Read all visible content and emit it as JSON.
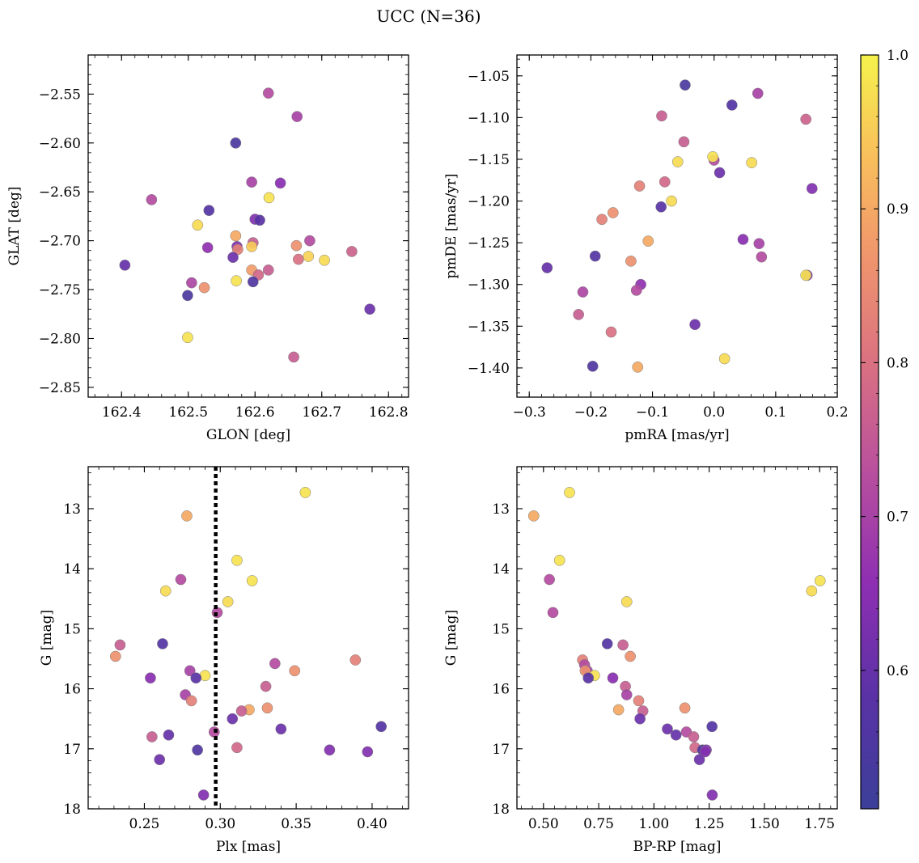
{
  "suptitle": "UCC (N=36)",
  "colorbar": {
    "min": 0.51,
    "max": 1.0,
    "ticks": [
      0.6,
      0.7,
      0.8,
      0.9,
      1.0
    ],
    "tick_labels": [
      "0.6",
      "0.7",
      "0.8",
      "0.9",
      "1.0"
    ],
    "colormap": "plasma"
  },
  "chart_data": [
    {
      "type": "scatter",
      "xlabel": "GLON [deg]",
      "ylabel": "GLAT [deg]",
      "xlim": [
        162.35,
        162.83
      ],
      "ylim": [
        -2.86,
        -2.51
      ],
      "y_inverted": false,
      "xticks": [
        162.4,
        162.5,
        162.6,
        162.7,
        162.8
      ],
      "xtick_labels": [
        "162.4",
        "162.5",
        "162.6",
        "162.7",
        "162.8"
      ],
      "yticks": [
        -2.55,
        -2.6,
        -2.65,
        -2.7,
        -2.75,
        -2.8,
        -2.85
      ],
      "ytick_labels": [
        "−2.55",
        "−2.60",
        "−2.65",
        "−2.70",
        "−2.75",
        "−2.80",
        "−2.85"
      ],
      "points": [
        {
          "x": 162.62,
          "y": -2.549,
          "c": 0.72
        },
        {
          "x": 162.663,
          "y": -2.573,
          "c": 0.7
        },
        {
          "x": 162.571,
          "y": -2.6,
          "c": 0.55
        },
        {
          "x": 162.595,
          "y": -2.64,
          "c": 0.7
        },
        {
          "x": 162.638,
          "y": -2.641,
          "c": 0.65
        },
        {
          "x": 162.445,
          "y": -2.658,
          "c": 0.72
        },
        {
          "x": 162.621,
          "y": -2.656,
          "c": 0.98
        },
        {
          "x": 162.531,
          "y": -2.669,
          "c": 0.57
        },
        {
          "x": 162.6,
          "y": -2.678,
          "c": 0.64
        },
        {
          "x": 162.607,
          "y": -2.679,
          "c": 0.58
        },
        {
          "x": 162.514,
          "y": -2.684,
          "c": 0.97
        },
        {
          "x": 162.571,
          "y": -2.695,
          "c": 0.9
        },
        {
          "x": 162.682,
          "y": -2.7,
          "c": 0.72
        },
        {
          "x": 162.597,
          "y": -2.702,
          "c": 0.76
        },
        {
          "x": 162.662,
          "y": -2.705,
          "c": 0.86
        },
        {
          "x": 162.573,
          "y": -2.706,
          "c": 0.64
        },
        {
          "x": 162.529,
          "y": -2.707,
          "c": 0.66
        },
        {
          "x": 162.595,
          "y": -2.706,
          "c": 0.95
        },
        {
          "x": 162.574,
          "y": -2.709,
          "c": 0.83
        },
        {
          "x": 162.745,
          "y": -2.711,
          "c": 0.77
        },
        {
          "x": 162.567,
          "y": -2.717,
          "c": 0.61
        },
        {
          "x": 162.68,
          "y": -2.716,
          "c": 0.96
        },
        {
          "x": 162.665,
          "y": -2.719,
          "c": 0.8
        },
        {
          "x": 162.704,
          "y": -2.72,
          "c": 0.97
        },
        {
          "x": 162.405,
          "y": -2.725,
          "c": 0.6
        },
        {
          "x": 162.595,
          "y": -2.73,
          "c": 0.88
        },
        {
          "x": 162.62,
          "y": -2.73,
          "c": 0.76
        },
        {
          "x": 162.605,
          "y": -2.735,
          "c": 0.78
        },
        {
          "x": 162.572,
          "y": -2.741,
          "c": 0.98
        },
        {
          "x": 162.597,
          "y": -2.742,
          "c": 0.56
        },
        {
          "x": 162.505,
          "y": -2.743,
          "c": 0.71
        },
        {
          "x": 162.524,
          "y": -2.748,
          "c": 0.86
        },
        {
          "x": 162.499,
          "y": -2.756,
          "c": 0.55
        },
        {
          "x": 162.772,
          "y": -2.77,
          "c": 0.61
        },
        {
          "x": 162.499,
          "y": -2.799,
          "c": 0.98
        },
        {
          "x": 162.658,
          "y": -2.819,
          "c": 0.76
        }
      ]
    },
    {
      "type": "scatter",
      "xlabel": "pmRA [mas/yr]",
      "ylabel": "pmDE [mas/yr]",
      "xlim": [
        -0.32,
        0.2
      ],
      "ylim": [
        -1.435,
        -1.025
      ],
      "y_inverted": false,
      "xticks": [
        -0.3,
        -0.2,
        -0.1,
        0.0,
        0.1,
        0.2
      ],
      "xtick_labels": [
        "−0.3",
        "−0.2",
        "−0.1",
        "0.0",
        "0.1",
        "0.2"
      ],
      "yticks": [
        -1.05,
        -1.1,
        -1.15,
        -1.2,
        -1.25,
        -1.3,
        -1.35,
        -1.4
      ],
      "ytick_labels": [
        "−1.05",
        "−1.10",
        "−1.15",
        "−1.20",
        "−1.25",
        "−1.30",
        "−1.35",
        "−1.40"
      ],
      "points": [
        {
          "x": -0.047,
          "y": -1.061,
          "c": 0.55
        },
        {
          "x": 0.071,
          "y": -1.071,
          "c": 0.7
        },
        {
          "x": 0.029,
          "y": -1.085,
          "c": 0.57
        },
        {
          "x": -0.085,
          "y": -1.098,
          "c": 0.76
        },
        {
          "x": 0.149,
          "y": -1.102,
          "c": 0.77
        },
        {
          "x": -0.049,
          "y": -1.129,
          "c": 0.76
        },
        {
          "x": 0.0,
          "y": -1.151,
          "c": 0.72
        },
        {
          "x": -0.002,
          "y": -1.147,
          "c": 0.98
        },
        {
          "x": -0.059,
          "y": -1.153,
          "c": 0.97
        },
        {
          "x": 0.061,
          "y": -1.154,
          "c": 0.97
        },
        {
          "x": 0.009,
          "y": -1.166,
          "c": 0.61
        },
        {
          "x": -0.08,
          "y": -1.177,
          "c": 0.78
        },
        {
          "x": -0.121,
          "y": -1.182,
          "c": 0.83
        },
        {
          "x": 0.159,
          "y": -1.185,
          "c": 0.64
        },
        {
          "x": -0.069,
          "y": -1.2,
          "c": 0.97
        },
        {
          "x": -0.086,
          "y": -1.207,
          "c": 0.58
        },
        {
          "x": -0.164,
          "y": -1.214,
          "c": 0.86
        },
        {
          "x": -0.182,
          "y": -1.222,
          "c": 0.83
        },
        {
          "x": 0.047,
          "y": -1.246,
          "c": 0.65
        },
        {
          "x": -0.107,
          "y": -1.248,
          "c": 0.9
        },
        {
          "x": 0.073,
          "y": -1.251,
          "c": 0.7
        },
        {
          "x": -0.193,
          "y": -1.266,
          "c": 0.57
        },
        {
          "x": 0.077,
          "y": -1.267,
          "c": 0.72
        },
        {
          "x": -0.135,
          "y": -1.272,
          "c": 0.86
        },
        {
          "x": -0.271,
          "y": -1.28,
          "c": 0.6
        },
        {
          "x": 0.151,
          "y": -1.289,
          "c": 0.64
        },
        {
          "x": 0.149,
          "y": -1.289,
          "c": 0.98
        },
        {
          "x": -0.119,
          "y": -1.3,
          "c": 0.66
        },
        {
          "x": -0.213,
          "y": -1.309,
          "c": 0.71
        },
        {
          "x": -0.126,
          "y": -1.307,
          "c": 0.72
        },
        {
          "x": -0.22,
          "y": -1.336,
          "c": 0.76
        },
        {
          "x": -0.031,
          "y": -1.348,
          "c": 0.61
        },
        {
          "x": -0.167,
          "y": -1.357,
          "c": 0.8
        },
        {
          "x": 0.017,
          "y": -1.389,
          "c": 0.97
        },
        {
          "x": -0.197,
          "y": -1.398,
          "c": 0.56
        },
        {
          "x": -0.124,
          "y": -1.399,
          "c": 0.9
        }
      ]
    },
    {
      "type": "scatter",
      "xlabel": "Plx [mas]",
      "ylabel": "G [mag]",
      "xlim": [
        0.213,
        0.424
      ],
      "ylim": [
        18.0,
        12.3
      ],
      "y_inverted": true,
      "xticks": [
        0.25,
        0.3,
        0.35,
        0.4
      ],
      "xtick_labels": [
        "0.25",
        "0.30",
        "0.35",
        "0.40"
      ],
      "yticks": [
        13,
        14,
        15,
        16,
        17,
        18
      ],
      "ytick_labels": [
        "13",
        "14",
        "15",
        "16",
        "17",
        "18"
      ],
      "vline_x": 0.297,
      "points": [
        {
          "x": 0.356,
          "y": 12.73,
          "c": 0.98
        },
        {
          "x": 0.278,
          "y": 13.12,
          "c": 0.9
        },
        {
          "x": 0.311,
          "y": 13.86,
          "c": 0.98
        },
        {
          "x": 0.274,
          "y": 14.18,
          "c": 0.72
        },
        {
          "x": 0.321,
          "y": 14.2,
          "c": 0.98
        },
        {
          "x": 0.264,
          "y": 14.37,
          "c": 0.97
        },
        {
          "x": 0.305,
          "y": 14.55,
          "c": 0.97
        },
        {
          "x": 0.298,
          "y": 14.73,
          "c": 0.72
        },
        {
          "x": 0.262,
          "y": 15.25,
          "c": 0.57
        },
        {
          "x": 0.234,
          "y": 15.27,
          "c": 0.76
        },
        {
          "x": 0.231,
          "y": 15.46,
          "c": 0.86
        },
        {
          "x": 0.389,
          "y": 15.52,
          "c": 0.83
        },
        {
          "x": 0.336,
          "y": 15.58,
          "c": 0.72
        },
        {
          "x": 0.28,
          "y": 15.7,
          "c": 0.7
        },
        {
          "x": 0.349,
          "y": 15.7,
          "c": 0.86
        },
        {
          "x": 0.29,
          "y": 15.78,
          "c": 0.98
        },
        {
          "x": 0.254,
          "y": 15.82,
          "c": 0.65
        },
        {
          "x": 0.284,
          "y": 15.82,
          "c": 0.58
        },
        {
          "x": 0.33,
          "y": 15.96,
          "c": 0.76
        },
        {
          "x": 0.277,
          "y": 16.1,
          "c": 0.7
        },
        {
          "x": 0.281,
          "y": 16.2,
          "c": 0.83
        },
        {
          "x": 0.319,
          "y": 16.35,
          "c": 0.9
        },
        {
          "x": 0.314,
          "y": 16.37,
          "c": 0.76
        },
        {
          "x": 0.331,
          "y": 16.32,
          "c": 0.86
        },
        {
          "x": 0.308,
          "y": 16.5,
          "c": 0.61
        },
        {
          "x": 0.406,
          "y": 16.63,
          "c": 0.57
        },
        {
          "x": 0.34,
          "y": 16.67,
          "c": 0.61
        },
        {
          "x": 0.296,
          "y": 16.72,
          "c": 0.72
        },
        {
          "x": 0.266,
          "y": 16.77,
          "c": 0.6
        },
        {
          "x": 0.255,
          "y": 16.8,
          "c": 0.76
        },
        {
          "x": 0.311,
          "y": 16.98,
          "c": 0.78
        },
        {
          "x": 0.285,
          "y": 17.02,
          "c": 0.56
        },
        {
          "x": 0.372,
          "y": 17.02,
          "c": 0.64
        },
        {
          "x": 0.397,
          "y": 17.05,
          "c": 0.64
        },
        {
          "x": 0.26,
          "y": 17.18,
          "c": 0.61
        },
        {
          "x": 0.289,
          "y": 17.77,
          "c": 0.64
        }
      ]
    },
    {
      "type": "scatter",
      "xlabel": "BP-RP [mag]",
      "ylabel": "G [mag]",
      "xlim": [
        0.38,
        1.83
      ],
      "ylim": [
        18.0,
        12.3
      ],
      "y_inverted": true,
      "xticks": [
        0.5,
        0.75,
        1.0,
        1.25,
        1.5,
        1.75
      ],
      "xtick_labels": [
        "0.50",
        "0.75",
        "1.00",
        "1.25",
        "1.50",
        "1.75"
      ],
      "yticks": [
        13,
        14,
        15,
        16,
        17,
        18
      ],
      "ytick_labels": [
        "13",
        "14",
        "15",
        "16",
        "17",
        "18"
      ],
      "points": [
        {
          "x": 0.618,
          "y": 12.73,
          "c": 0.98
        },
        {
          "x": 0.456,
          "y": 13.12,
          "c": 0.9
        },
        {
          "x": 0.573,
          "y": 13.86,
          "c": 0.98
        },
        {
          "x": 0.527,
          "y": 14.18,
          "c": 0.72
        },
        {
          "x": 1.752,
          "y": 14.2,
          "c": 0.98
        },
        {
          "x": 1.714,
          "y": 14.37,
          "c": 0.97
        },
        {
          "x": 0.877,
          "y": 14.55,
          "c": 0.97
        },
        {
          "x": 0.543,
          "y": 14.73,
          "c": 0.72
        },
        {
          "x": 0.789,
          "y": 15.25,
          "c": 0.57
        },
        {
          "x": 0.86,
          "y": 15.27,
          "c": 0.76
        },
        {
          "x": 0.893,
          "y": 15.46,
          "c": 0.86
        },
        {
          "x": 0.677,
          "y": 15.52,
          "c": 0.83
        },
        {
          "x": 0.686,
          "y": 15.6,
          "c": 0.72
        },
        {
          "x": 0.698,
          "y": 15.7,
          "c": 0.7
        },
        {
          "x": 0.689,
          "y": 15.7,
          "c": 0.86
        },
        {
          "x": 0.731,
          "y": 15.78,
          "c": 0.98
        },
        {
          "x": 0.814,
          "y": 15.82,
          "c": 0.65
        },
        {
          "x": 0.703,
          "y": 15.82,
          "c": 0.58
        },
        {
          "x": 0.871,
          "y": 15.96,
          "c": 0.76
        },
        {
          "x": 0.877,
          "y": 16.1,
          "c": 0.7
        },
        {
          "x": 0.931,
          "y": 16.2,
          "c": 0.83
        },
        {
          "x": 0.84,
          "y": 16.35,
          "c": 0.9
        },
        {
          "x": 0.95,
          "y": 16.37,
          "c": 0.76
        },
        {
          "x": 1.14,
          "y": 16.32,
          "c": 0.86
        },
        {
          "x": 0.937,
          "y": 16.5,
          "c": 0.61
        },
        {
          "x": 1.263,
          "y": 16.63,
          "c": 0.57
        },
        {
          "x": 1.061,
          "y": 16.67,
          "c": 0.61
        },
        {
          "x": 1.147,
          "y": 16.72,
          "c": 0.72
        },
        {
          "x": 1.1,
          "y": 16.77,
          "c": 0.6
        },
        {
          "x": 1.18,
          "y": 16.8,
          "c": 0.76
        },
        {
          "x": 1.186,
          "y": 16.98,
          "c": 0.78
        },
        {
          "x": 1.22,
          "y": 17.02,
          "c": 0.56
        },
        {
          "x": 1.237,
          "y": 17.02,
          "c": 0.64
        },
        {
          "x": 1.232,
          "y": 17.05,
          "c": 0.64
        },
        {
          "x": 1.206,
          "y": 17.18,
          "c": 0.61
        },
        {
          "x": 1.264,
          "y": 17.77,
          "c": 0.64
        }
      ]
    }
  ]
}
